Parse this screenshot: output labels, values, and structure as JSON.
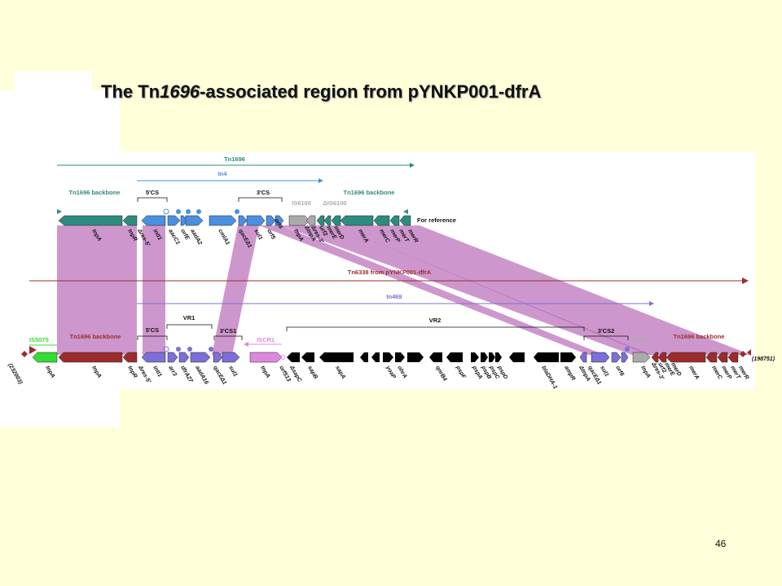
{
  "title": {
    "prefix": "The Tn",
    "italic": "1696",
    "suffix": "-associated region from pYNKP001-dfrA"
  },
  "page_number": "46",
  "colors": {
    "teal": "#2E8B7F",
    "blue": "#4B8FE0",
    "purple": "#7B6FD8",
    "darkred": "#9B2C2C",
    "magenta": "#CC99CC",
    "green": "#33DD33",
    "pink": "#DD88DD",
    "black": "#000000",
    "grey": "#AAAAAA"
  },
  "top": {
    "tn1696": "Tn1696",
    "in4": "In4",
    "backbone_left": "Tn1696 backbone",
    "backbone_right": "Tn1696 backbone",
    "cs5": "5'CS",
    "cs3": "3'CS",
    "is6100": "IS6100",
    "dis6100": "ΔIS6100",
    "reference": "For reference",
    "genes": [
      "tnpA",
      "tnpR",
      "Δres-5'",
      "intI1",
      "aacC1",
      "orfE",
      "aadA2",
      "cmlA1",
      "qacEΔ1",
      "sul1",
      "orf5",
      "orf6",
      "tnpA",
      "ΔtnpA",
      "Δres-3'",
      "urf2",
      "merE",
      "merD",
      "merA",
      "merC",
      "merP",
      "merT",
      "merR"
    ]
  },
  "bottom": {
    "tn6338": "Tn6338 from pYNKP001-dfrA",
    "in469": "In469",
    "is5075": "IS5075",
    "backbone_left": "Tn1696 backbone",
    "backbone_right": "Tn1696 backbone",
    "cs5": "5'CS",
    "vr1": "VR1",
    "cs3_1": "3'CS1",
    "iscr1": "ISCR1",
    "vr2": "VR2",
    "cs3_2": "3'CS2",
    "is6100": "IS6100",
    "coord_left": "(232003)",
    "coord_right": "(198751)",
    "genes": [
      "tnpA",
      "tnpA",
      "tnpR",
      "Δres-5'",
      "intI1",
      "arr3",
      "dfrA27",
      "aadA16",
      "qacEΔ1",
      "sul1",
      "tnpA",
      "orf513",
      "ΔsapC",
      "sapB",
      "sapA",
      "yoaP",
      "ohrA",
      "qnrB4",
      "pspF",
      "pspA",
      "pspB",
      "pspC",
      "pspD",
      "blaDHA-1",
      "ampR",
      "ΔtnpA",
      "qacEΔ1",
      "sul1",
      "orf6",
      "tnpA",
      "Δres-3'",
      "urf2",
      "merE",
      "merD",
      "merA",
      "merC",
      "merP",
      "merT",
      "merR"
    ]
  }
}
